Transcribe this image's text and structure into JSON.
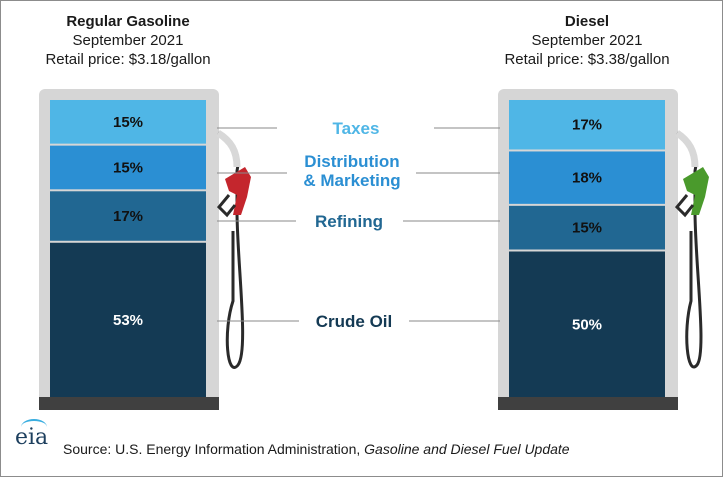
{
  "chart_data": {
    "type": "bar",
    "stacked": true,
    "unit": "%",
    "categories": [
      "Regular Gasoline",
      "Diesel"
    ],
    "series": [
      {
        "name": "Crude Oil",
        "values": [
          53,
          50
        ],
        "color": "#143a54"
      },
      {
        "name": "Refining",
        "values": [
          17,
          15
        ],
        "color": "#216792"
      },
      {
        "name": "Distribution & Marketing",
        "values": [
          15,
          18
        ],
        "color": "#2b8fd3"
      },
      {
        "name": "Taxes",
        "values": [
          15,
          17
        ],
        "color": "#4fb6e6"
      }
    ],
    "category_meta": [
      {
        "title": "Regular Gasoline",
        "period": "September 2021",
        "price": "Retail price: $3.18/gallon",
        "nozzle_color": "#c4262d"
      },
      {
        "title": "Diesel",
        "period": "September 2021",
        "price": "Retail price: $3.38/gallon",
        "nozzle_color": "#4a9a2c"
      }
    ],
    "series_labels": {
      "taxes": "Taxes",
      "distribution_line1": "Distribution",
      "distribution_line2": "& Marketing",
      "refining": "Refining",
      "crude": "Crude Oil"
    },
    "source_prefix": "Source: U.S. Energy Information Administration, ",
    "source_title": "Gasoline and Diesel Fuel Update",
    "logo_text": "eia"
  }
}
